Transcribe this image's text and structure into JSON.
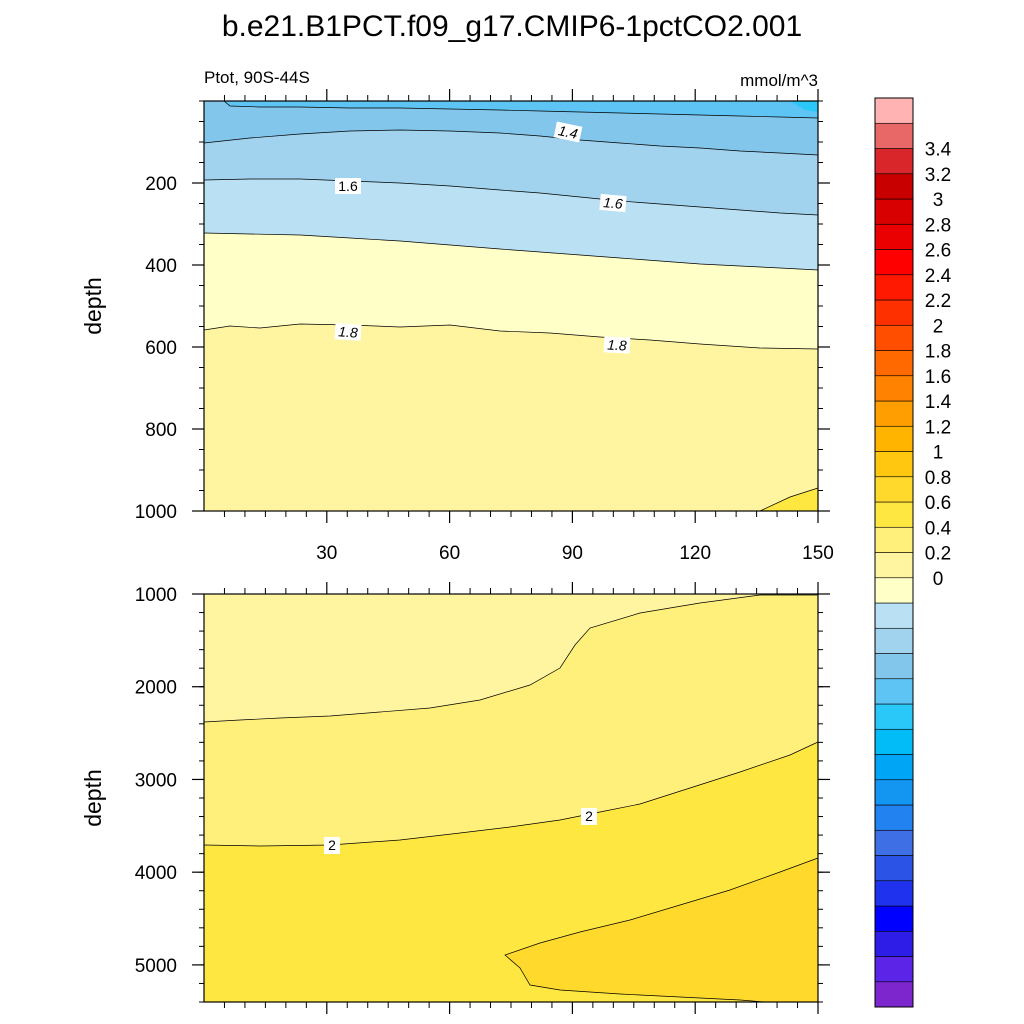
{
  "chart_data": {
    "type": "contour",
    "title": "b.e21.B1PCT.f09_g17.CMIP6-1pctCO2.001",
    "left_string": "Ptot, 90S-44S",
    "right_string": "mmol/m^3",
    "x_ticks": [
      "30",
      "60",
      "90",
      "120",
      "150"
    ],
    "x_tick_values": [
      30,
      60,
      90,
      120,
      150
    ],
    "xlim": [
      0,
      150
    ],
    "panels": [
      {
        "name": "upper",
        "ylabel": "depth",
        "ylim": [
          0,
          1000
        ],
        "y_ticks": [
          "200",
          "400",
          "600",
          "800",
          "1000"
        ],
        "y_tick_values": [
          200,
          400,
          600,
          800,
          1000
        ],
        "contour_labels": [
          "1.4",
          "1.6",
          "1.6",
          "1.8",
          "1.8"
        ]
      },
      {
        "name": "lower",
        "ylabel": "depth",
        "ylim": [
          1000,
          5400
        ],
        "y_ticks": [
          "1000",
          "2000",
          "3000",
          "4000",
          "5000"
        ],
        "y_tick_values": [
          1000,
          2000,
          3000,
          4000,
          5000
        ],
        "contour_labels": [
          "2",
          "2"
        ]
      }
    ],
    "colorbar": {
      "labels": [
        "3.4",
        "3.2",
        "3",
        "2.8",
        "2.6",
        "2.4",
        "2.2",
        "2",
        "1.8",
        "1.6",
        "1.4",
        "1.2",
        "1",
        "0.8",
        "0.6",
        "0.4",
        "0.2",
        "0"
      ],
      "colors": [
        "#7d26cd",
        "#5c24e6",
        "#2e1de6",
        "#0000ff",
        "#1f33ee",
        "#2b53e6",
        "#3f6fe4",
        "#2282f0",
        "#1396f2",
        "#00a6f5",
        "#02bcf7",
        "#29c8f8",
        "#5ec4f4",
        "#82c6ec",
        "#a1d2ee",
        "#b9e0f3",
        "#ffffc8",
        "#fff5a0",
        "#fff07c",
        "#ffe742",
        "#ffd92b",
        "#ffc70f",
        "#ffb400",
        "#ff9e00",
        "#ff8200",
        "#ff6900",
        "#ff4e00",
        "#ff3000",
        "#ff1900",
        "#ff0000",
        "#ea0000",
        "#d80000",
        "#c80000",
        "#d8262b",
        "#e86767",
        "#ffb3b3"
      ]
    }
  },
  "colors": {
    "c14": "#5ec4f4",
    "c15": "#82c6ec",
    "c16": "#a1d2ee",
    "c17": "#b9e0f3",
    "c18": "#ffffc8",
    "c19": "#fff5a0",
    "c20": "#fff07c",
    "c21": "#ffe742",
    "c22": "#ffd92b",
    "top": "#29c8f8"
  }
}
